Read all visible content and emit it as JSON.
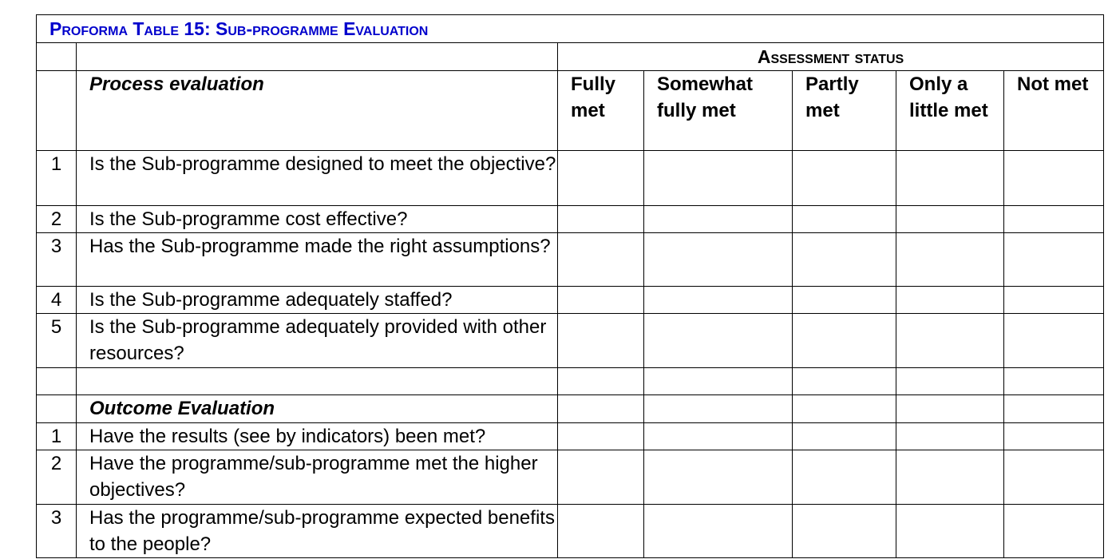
{
  "title": "Proforma Table 15: Sub-programme Evaluation",
  "assessment_status": "Assessment status",
  "status_columns": [
    "Fully met",
    "Somewhat fully met",
    "Partly met",
    "Only a little met",
    "Not met"
  ],
  "process": {
    "heading": "Process evaluation",
    "rows": [
      {
        "num": "1",
        "question": "Is the Sub-programme designed to meet the objective?"
      },
      {
        "num": "2",
        "question": "Is the Sub-programme cost effective?"
      },
      {
        "num": "3",
        "question": "Has the Sub-programme made the right assumptions?"
      },
      {
        "num": "4",
        "question": "Is the Sub-programme adequately staffed?"
      },
      {
        "num": "5",
        "question": "Is the Sub-programme adequately provided with other resources?"
      }
    ]
  },
  "outcome": {
    "heading": "Outcome Evaluation",
    "rows": [
      {
        "num": "1",
        "question": "Have the results (see by indicators) been met?"
      },
      {
        "num": "2",
        "question": "Have the programme/sub-programme met the higher objectives?"
      },
      {
        "num": "3",
        "question": "Has the programme/sub-programme expected benefits to the people?"
      }
    ]
  }
}
